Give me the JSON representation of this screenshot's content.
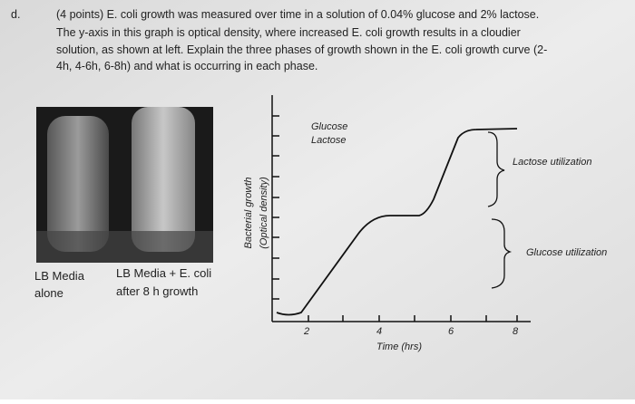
{
  "question": {
    "label": "d.",
    "lines": [
      "(4 points) E. coli growth was measured over time in a solution of 0.04% glucose and 2% lactose.",
      "The y-axis in this graph is optical density, where increased E. coli growth results in a cloudier",
      "solution, as shown at left. Explain the three phases of growth shown in the E. coli growth curve (2-",
      "4h, 4-6h, 6-8h) and what is occurring in each phase."
    ]
  },
  "photo": {
    "left_label": [
      "LB Media",
      "alone"
    ],
    "right_label": [
      "LB Media + E. coli",
      "after 8 h growth"
    ]
  },
  "graph": {
    "legend": [
      "Glucose",
      "Lactose"
    ],
    "y_label": [
      "Bacterial growth",
      "(Optical density)"
    ],
    "x_label": "Time (hrs)",
    "x_ticks": [
      "2",
      "4",
      "6",
      "8"
    ],
    "annotations": [
      "Lactose utilization",
      "Glucose utilization"
    ]
  }
}
